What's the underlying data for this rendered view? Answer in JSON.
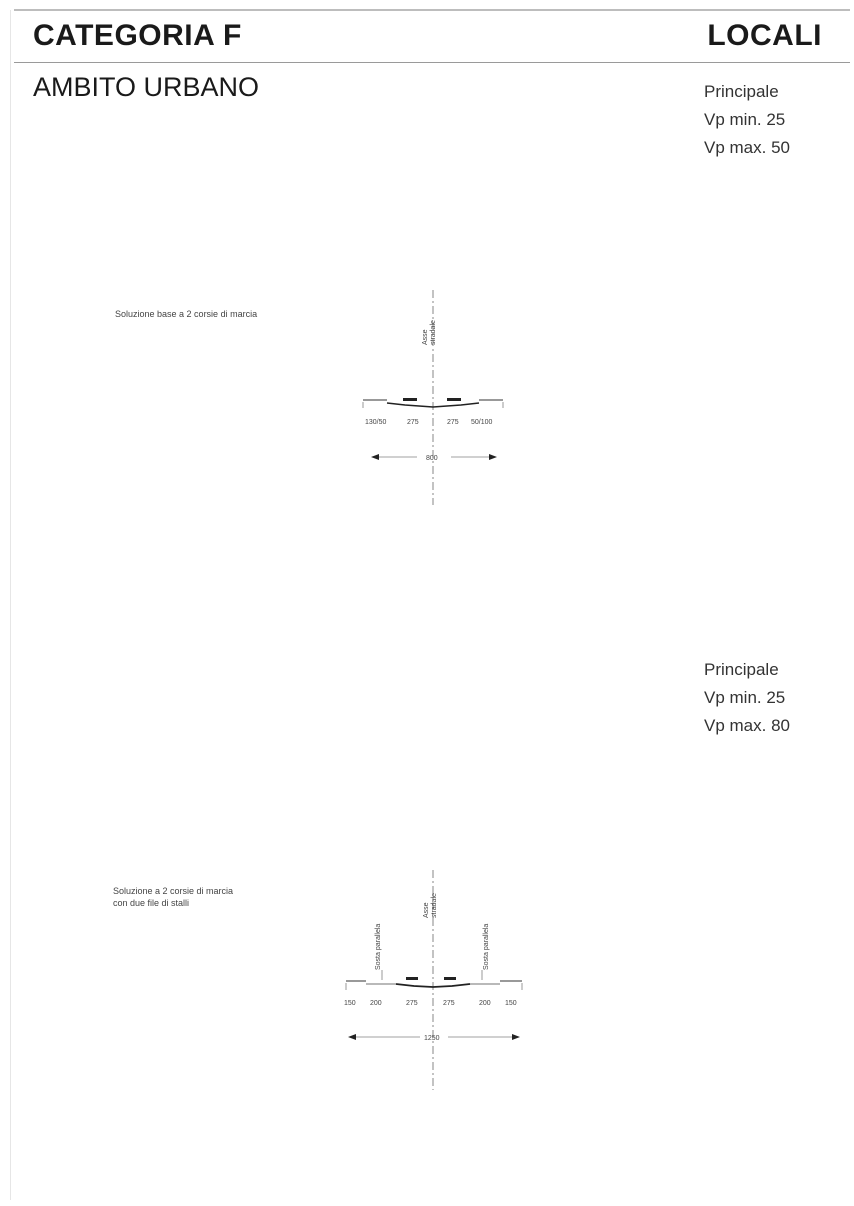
{
  "header": {
    "category": "CATEGORIA F",
    "type": "LOCALI"
  },
  "subtitle": "AMBITO URBANO",
  "sections": [
    {
      "specs": {
        "role": "Principale",
        "vp_min": "Vp min. 25",
        "vp_max": "Vp max. 50"
      },
      "caption": [
        "Soluzione base a 2 corsie di marcia"
      ],
      "axis_label": [
        "Asse",
        "stradale"
      ],
      "dims": [
        "130/50",
        "275",
        "275",
        "50/100"
      ],
      "total": "800"
    },
    {
      "specs": {
        "role": "Principale",
        "vp_min": "Vp min. 25",
        "vp_max": "Vp max. 80"
      },
      "caption": [
        "Soluzione a 2 corsie di marcia",
        "con due file di stalli"
      ],
      "axis_label": [
        "Asse",
        "stradale"
      ],
      "parking_label": "Sosta parallela",
      "dims": [
        "150",
        "200",
        "275",
        "275",
        "200",
        "150"
      ],
      "total": "1250"
    }
  ]
}
